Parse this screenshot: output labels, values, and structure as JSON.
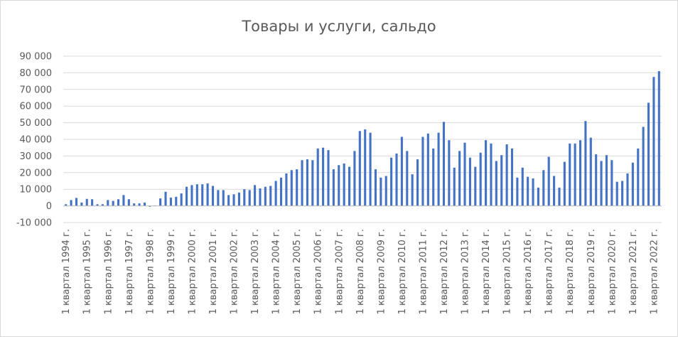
{
  "chart_data": {
    "type": "bar",
    "title": "Товары и услуги, сальдо",
    "xlabel": "",
    "ylabel": "",
    "ylim": [
      -10000,
      90000
    ],
    "yticks": [
      -10000,
      0,
      10000,
      20000,
      30000,
      40000,
      50000,
      60000,
      70000,
      80000,
      90000
    ],
    "ytick_labels": [
      "-10 000",
      "0",
      "10 000",
      "20 000",
      "30 000",
      "40 000",
      "50 000",
      "60 000",
      "70 000",
      "80 000",
      "90 000"
    ],
    "grid": true,
    "legend": "none",
    "bar_color": "#4472c4",
    "year_labels": [
      "1 квартал 1994 г.",
      "1 квартал 1995 г.",
      "1 квартал 1996 г.",
      "1 квартал 1997 г.",
      "1 квартал 1998 г.",
      "1 квартал 1999 г.",
      "1 квартал 2000 г.",
      "1 квартал 2001 г.",
      "1 квартал 2002 г.",
      "1 квартал 2003 г.",
      "1 квартал 2004 г.",
      "1 квартал 2005 г.",
      "1 квартал 2006 г.",
      "1 квартал 2007 г.",
      "1 квартал 2008 г.",
      "1 квартал 2009 г.",
      "1 квартал 2010 г.",
      "1 квартал 2011 г.",
      "1 квартал 2012 г.",
      "1 квартал 2013 г.",
      "1 квартал 2014 г.",
      "1 квартал 2015 г.",
      "1 квартал 2016 г.",
      "1 квартал 2017 г.",
      "1 квартал 2018 г.",
      "1 квартал 2019 г.",
      "1 квартал 2020 г.",
      "1 квартал 2021 г.",
      "1 квартал 2022 г."
    ],
    "series": [
      {
        "values": [
          1000,
          3500,
          4800,
          2000,
          4200,
          4000,
          1000,
          1000,
          3500,
          3000,
          4000,
          6500,
          4000,
          1500,
          1500,
          2000,
          -500,
          300,
          4500,
          8500,
          5000,
          5500,
          7500,
          11500,
          12500,
          13000,
          13000,
          13500,
          12000,
          9500,
          9500,
          6500,
          7000,
          8000,
          10000,
          9500,
          12500,
          10500,
          11500,
          12000,
          15000,
          17000,
          19500,
          21500,
          22000,
          27500,
          28000,
          27500,
          34500,
          35000,
          33500,
          22000,
          24500,
          25500,
          23500,
          33000,
          45000,
          46000,
          44000,
          22000,
          17000,
          18000,
          29000,
          31500,
          41500,
          33000,
          19000,
          28000,
          41500,
          43500,
          34500,
          44000,
          50500,
          39500,
          23000,
          33000,
          38000,
          29000,
          23500,
          32000,
          39500,
          37500,
          27000,
          30500,
          37000,
          34500,
          17000,
          23000,
          17500,
          16500,
          11000,
          21500,
          29500,
          18000,
          11000,
          26500,
          37500,
          37500,
          39500,
          51000,
          41000,
          31000,
          27000,
          30500,
          27500,
          14500,
          15000,
          19500,
          26000,
          34500,
          47500,
          62000,
          77500,
          81000
        ]
      }
    ]
  }
}
